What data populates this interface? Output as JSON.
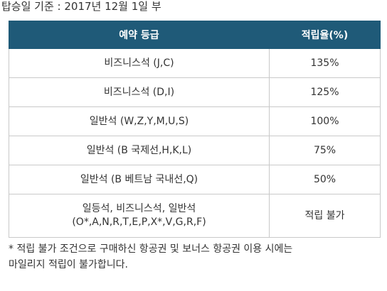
{
  "heading": "탑승일 기준 : 2017년 12월 1일 부",
  "table": {
    "columns": [
      "예약 등급",
      "적립율(%)"
    ],
    "rows": [
      {
        "class_line1": "비즈니스석 (J,C)",
        "class_line2": "",
        "rate": "135%"
      },
      {
        "class_line1": "비즈니스석 (D,I)",
        "class_line2": "",
        "rate": "125%"
      },
      {
        "class_line1": "일반석 (W,Z,Y,M,U,S)",
        "class_line2": "",
        "rate": "100%"
      },
      {
        "class_line1": "일반석 (B 국제선,H,K,L)",
        "class_line2": "",
        "rate": "75%"
      },
      {
        "class_line1": "일반석 (B 베트남 국내선,Q)",
        "class_line2": "",
        "rate": "50%"
      },
      {
        "class_line1": "일등석, 비즈니스석, 일반석",
        "class_line2": "(O*,A,N,R,T,E,P,X*,V,G,R,F)",
        "rate": "적립 불가"
      }
    ]
  },
  "footnote": {
    "line1": "* 적립 불가 조건으로 구매하신 항공권 및 보너스 항공권 이용 시에는",
    "line2": "마일리지 적립이 불가합니다."
  },
  "colors": {
    "header_bg": "#1f5a78",
    "header_text": "#ffffff",
    "border": "#c9c9c9"
  }
}
